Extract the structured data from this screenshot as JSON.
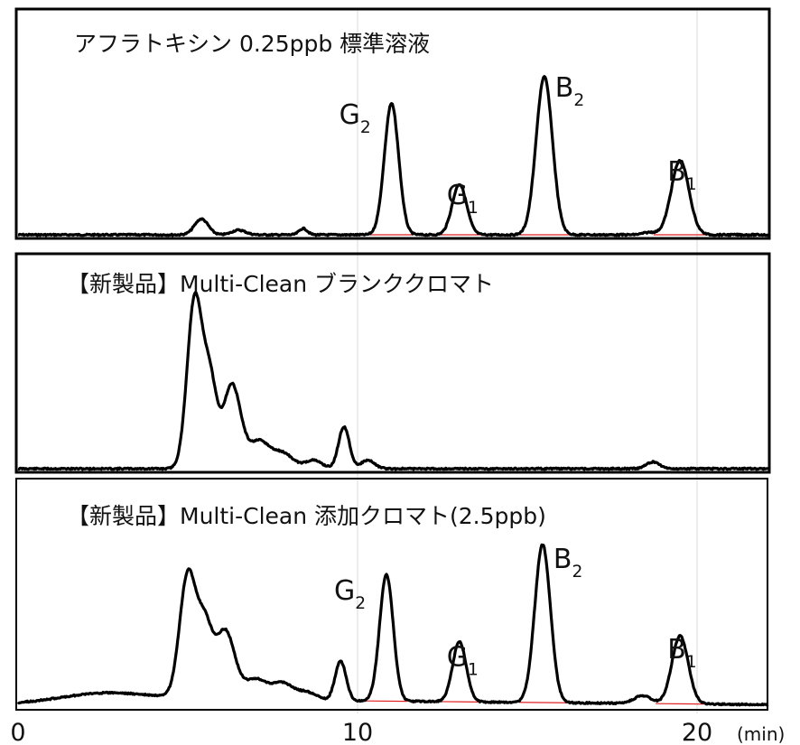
{
  "chart_data": {
    "type": "line",
    "xlim": [
      0,
      22
    ],
    "x_ticks": [
      {
        "value": 0,
        "label": "0"
      },
      {
        "value": 10,
        "label": "10"
      },
      {
        "value": 20,
        "label": "20"
      }
    ],
    "x_unit": "(min)",
    "grid": "vertical",
    "baseline_color": "#e02020",
    "panels": [
      {
        "title": "アフラトキシン 0.25ppb 標準溶液",
        "peaks": [
          {
            "name": "G",
            "sub": "2",
            "x": 11.0,
            "height": 0.83,
            "width": 0.21
          },
          {
            "name": "G",
            "sub": "1",
            "x": 13.0,
            "height": 0.32,
            "width": 0.21
          },
          {
            "name": "B",
            "sub": "2",
            "x": 15.5,
            "height": 1.0,
            "width": 0.24
          },
          {
            "name": "B",
            "sub": "1",
            "x": 19.5,
            "height": 0.47,
            "width": 0.26
          }
        ],
        "minor_peaks": [
          {
            "x": 5.4,
            "height": 0.1,
            "width": 0.2
          },
          {
            "x": 6.5,
            "height": 0.03,
            "width": 0.2
          },
          {
            "x": 8.4,
            "height": 0.04,
            "width": 0.12
          },
          {
            "x": 18.6,
            "height": 0.015,
            "width": 0.2
          }
        ]
      },
      {
        "title": "【新製品】Multi-Clean ブランククロマト",
        "peaks": [],
        "minor_peaks": [
          {
            "x": 5.2,
            "height": 1.0,
            "width": 0.22
          },
          {
            "x": 5.65,
            "height": 0.5,
            "width": 0.2
          },
          {
            "x": 6.3,
            "height": 0.5,
            "width": 0.26
          },
          {
            "x": 7.1,
            "height": 0.16,
            "width": 0.3
          },
          {
            "x": 7.8,
            "height": 0.09,
            "width": 0.3
          },
          {
            "x": 8.7,
            "height": 0.05,
            "width": 0.25
          },
          {
            "x": 9.6,
            "height": 0.25,
            "width": 0.16
          },
          {
            "x": 10.3,
            "height": 0.05,
            "width": 0.2
          },
          {
            "x": 18.7,
            "height": 0.04,
            "width": 0.2
          }
        ]
      },
      {
        "title": "【新製品】Multi-Clean 添加クロマト(2.5ppb)",
        "peaks": [
          {
            "name": "G",
            "sub": "2",
            "x": 10.85,
            "height": 0.8,
            "width": 0.2
          },
          {
            "name": "G",
            "sub": "1",
            "x": 13.0,
            "height": 0.38,
            "width": 0.2
          },
          {
            "name": "B",
            "sub": "2",
            "x": 15.45,
            "height": 1.0,
            "width": 0.23
          },
          {
            "name": "B",
            "sub": "1",
            "x": 19.5,
            "height": 0.43,
            "width": 0.24
          }
        ],
        "minor_peaks": [
          {
            "x": 2.5,
            "height": 0.05,
            "width": 1.2
          },
          {
            "x": 5.0,
            "height": 0.78,
            "width": 0.24
          },
          {
            "x": 5.5,
            "height": 0.43,
            "width": 0.22
          },
          {
            "x": 6.1,
            "height": 0.43,
            "width": 0.28
          },
          {
            "x": 7.0,
            "height": 0.13,
            "width": 0.35
          },
          {
            "x": 7.8,
            "height": 0.1,
            "width": 0.3
          },
          {
            "x": 8.5,
            "height": 0.05,
            "width": 0.3
          },
          {
            "x": 9.5,
            "height": 0.25,
            "width": 0.16
          },
          {
            "x": 18.4,
            "height": 0.05,
            "width": 0.25
          }
        ]
      }
    ]
  }
}
